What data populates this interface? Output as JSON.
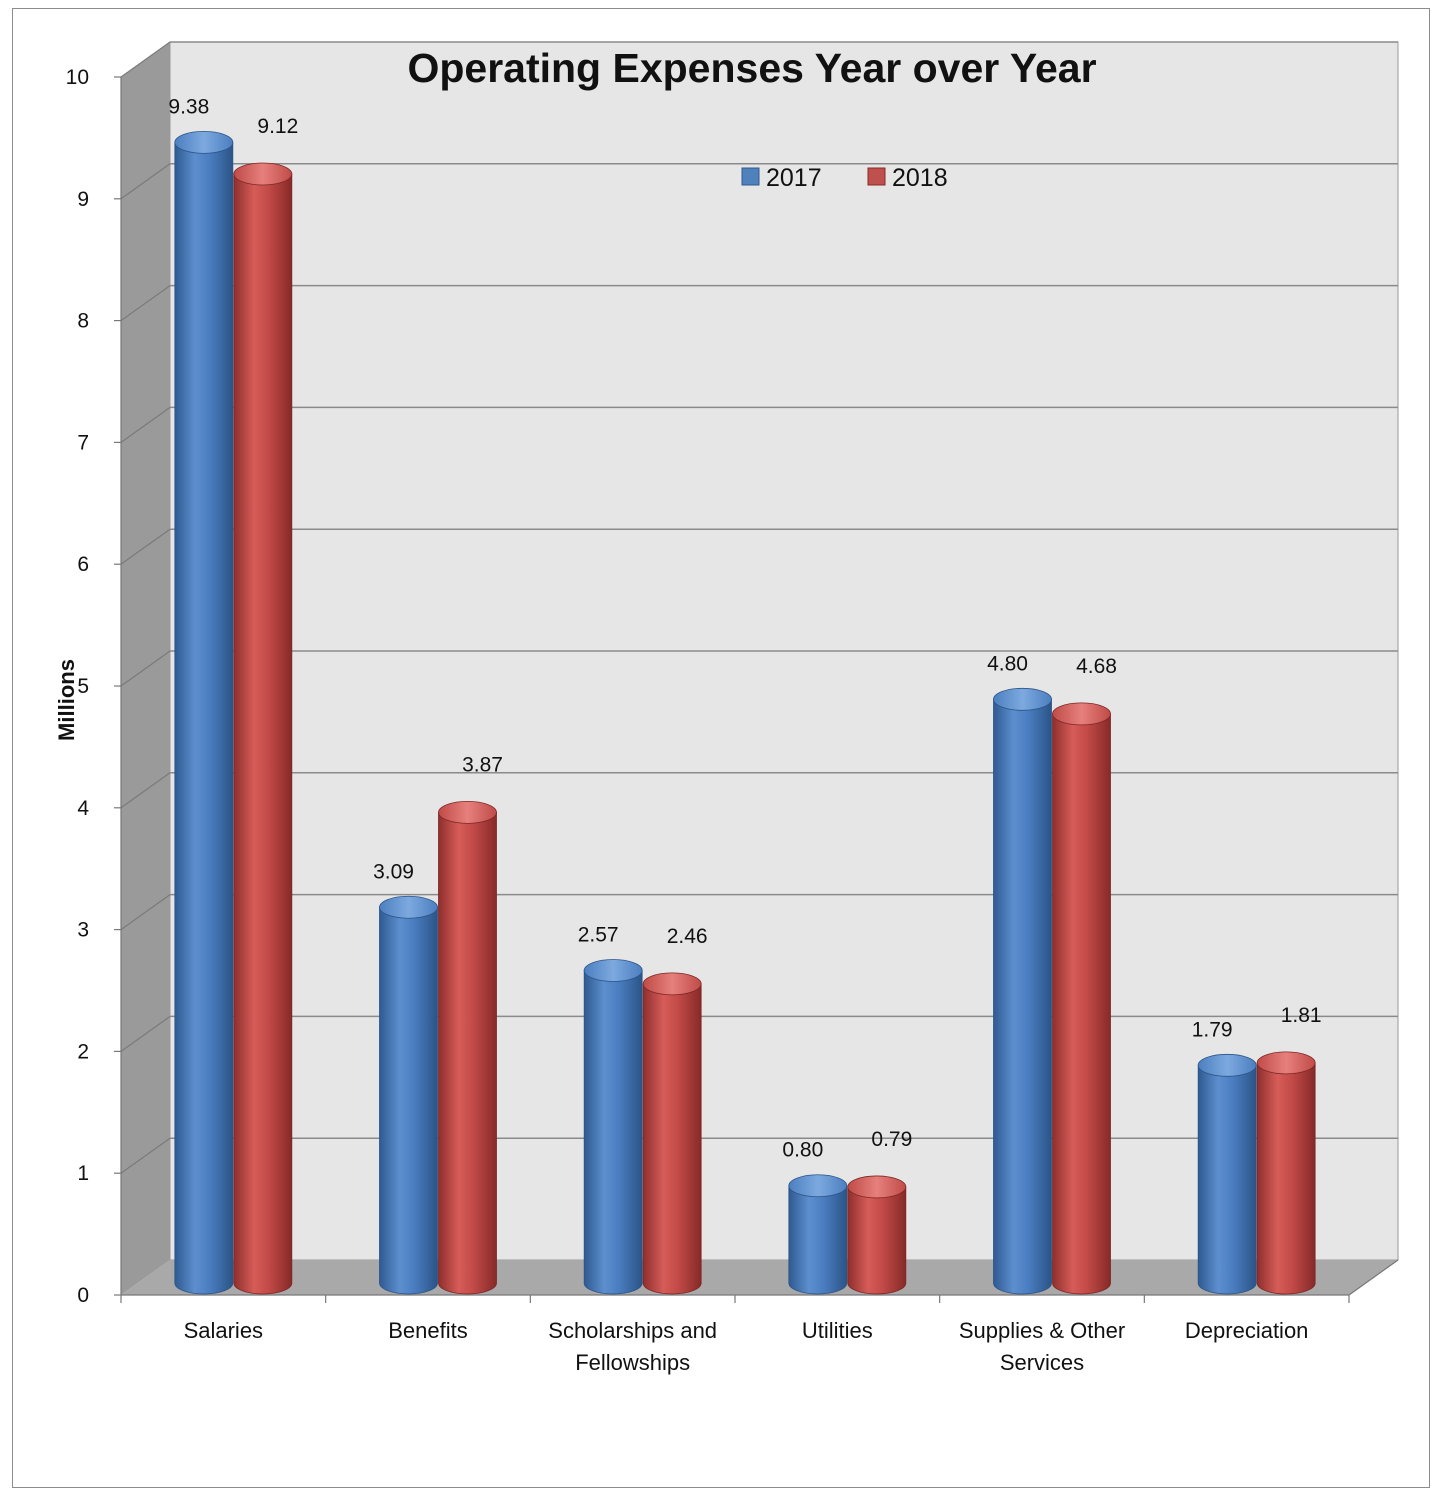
{
  "chart_data": {
    "type": "bar",
    "title": "Operating Expenses Year over Year",
    "ylabel": "Millions",
    "xlabel": "",
    "ylim": [
      0,
      10
    ],
    "yticks": [
      "0",
      "1",
      "2",
      "3",
      "4",
      "5",
      "6",
      "7",
      "8",
      "9",
      "10"
    ],
    "grid": true,
    "legend_position": "top-center",
    "categories": [
      [
        "Salaries"
      ],
      [
        "Benefits"
      ],
      [
        "Scholarships and",
        "Fellowships"
      ],
      [
        "Utilities"
      ],
      [
        "Supplies & Other",
        "Services"
      ],
      [
        "Depreciation"
      ]
    ],
    "series": [
      {
        "name": "2017",
        "color": "#4f81bd",
        "values": [
          9.38,
          3.09,
          2.57,
          0.8,
          4.8,
          1.79
        ],
        "labels": [
          "9.38",
          "3.09",
          "2.57",
          "0.80",
          "4.80",
          "1.79"
        ]
      },
      {
        "name": "2018",
        "color": "#c0504d",
        "values": [
          9.12,
          3.87,
          2.46,
          0.79,
          4.68,
          1.81
        ],
        "labels": [
          "9.12",
          "3.87",
          "2.46",
          "0.79",
          "4.68",
          "1.81"
        ]
      }
    ]
  }
}
